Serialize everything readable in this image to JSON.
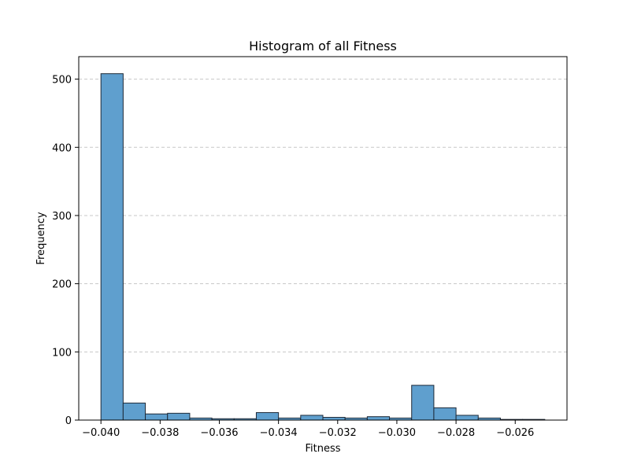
{
  "chart_data": {
    "type": "bar",
    "title": "Histogram of all Fitness",
    "xlabel": "Fitness",
    "ylabel": "Frequency",
    "xlim": [
      -0.04075,
      -0.02425
    ],
    "ylim": [
      0,
      533
    ],
    "bin_edges": [
      -0.04,
      -0.03925,
      -0.0385,
      -0.03775,
      -0.037,
      -0.03625,
      -0.0355,
      -0.03475,
      -0.034,
      -0.03325,
      -0.0325,
      -0.03175,
      -0.031,
      -0.03025,
      -0.0295,
      -0.02875,
      -0.028,
      -0.02725,
      -0.0265,
      -0.02575,
      -0.025
    ],
    "values": [
      508,
      25,
      9,
      10,
      3,
      2,
      2,
      11,
      3,
      7,
      4,
      3,
      5,
      3,
      51,
      18,
      7,
      3,
      1,
      1
    ],
    "x_ticks": [
      -0.04,
      -0.038,
      -0.036,
      -0.034,
      -0.032,
      -0.03,
      -0.028,
      -0.026
    ],
    "x_tick_labels": [
      "−0.040",
      "−0.038",
      "−0.036",
      "−0.034",
      "−0.032",
      "−0.030",
      "−0.028",
      "−0.026"
    ],
    "y_ticks": [
      0,
      100,
      200,
      300,
      400,
      500
    ],
    "y_tick_labels": [
      "0",
      "100",
      "200",
      "300",
      "400",
      "500"
    ],
    "grid": "y-dashed",
    "bar_color": "#5f9fce",
    "bar_edge_color": "#1f2a38",
    "grid_color": "#c8c8c8"
  }
}
